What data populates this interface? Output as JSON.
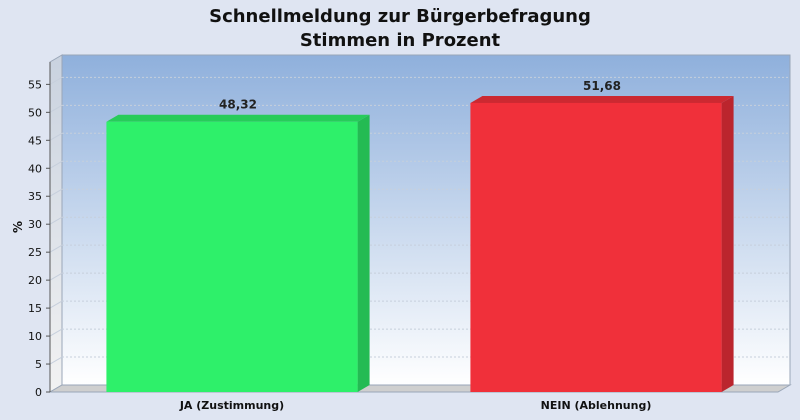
{
  "chart_data": {
    "type": "bar",
    "title": "Schnellmeldung zur Bürgerbefragung",
    "subtitle": "Stimmen in Prozent",
    "ylabel": "%",
    "xlabel": "",
    "ylim": [
      0,
      59
    ],
    "yticks": [
      0,
      5,
      10,
      15,
      20,
      25,
      30,
      35,
      40,
      45,
      50,
      55
    ],
    "grid": true,
    "categories": [
      "JA (Zustimmung)",
      "NEIN (Ablehnung)"
    ],
    "values": [
      48.32,
      51.68
    ],
    "data_labels": [
      "48,32",
      "51,68"
    ],
    "colors": [
      "#2ef06a",
      "#f0303a"
    ]
  }
}
